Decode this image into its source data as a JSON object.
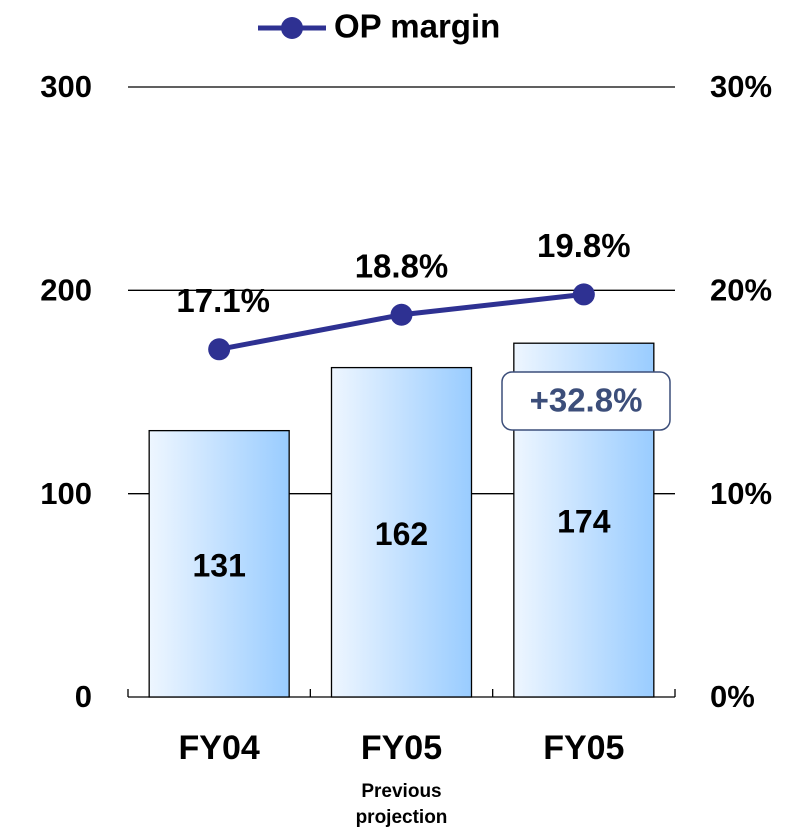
{
  "chart_data": {
    "type": "bar",
    "categories": [
      "FY04",
      "FY05",
      "FY05"
    ],
    "category_notes": [
      null,
      "Previous projection",
      null
    ],
    "series": [
      {
        "type": "bar",
        "color": "#99ccff",
        "values": [
          131,
          162,
          174
        ]
      },
      {
        "name": "OP margin",
        "type": "line",
        "axis": "y2",
        "color": "#2e3192",
        "values": [
          17.1,
          18.8,
          19.8
        ],
        "value_labels": [
          "17.1%",
          "18.8%",
          "19.8%"
        ]
      }
    ],
    "ylim": [
      0,
      300
    ],
    "yticks": [
      0,
      100,
      200,
      300
    ],
    "y2lim": [
      0,
      30
    ],
    "y2ticks": [
      {
        "value": 0,
        "label": "0%"
      },
      {
        "value": 10,
        "label": "10%"
      },
      {
        "value": 20,
        "label": "20%"
      },
      {
        "value": 30,
        "label": "30%"
      }
    ],
    "grid": true,
    "legend": "top",
    "annotations": [
      {
        "text": "+32.8%"
      }
    ]
  }
}
